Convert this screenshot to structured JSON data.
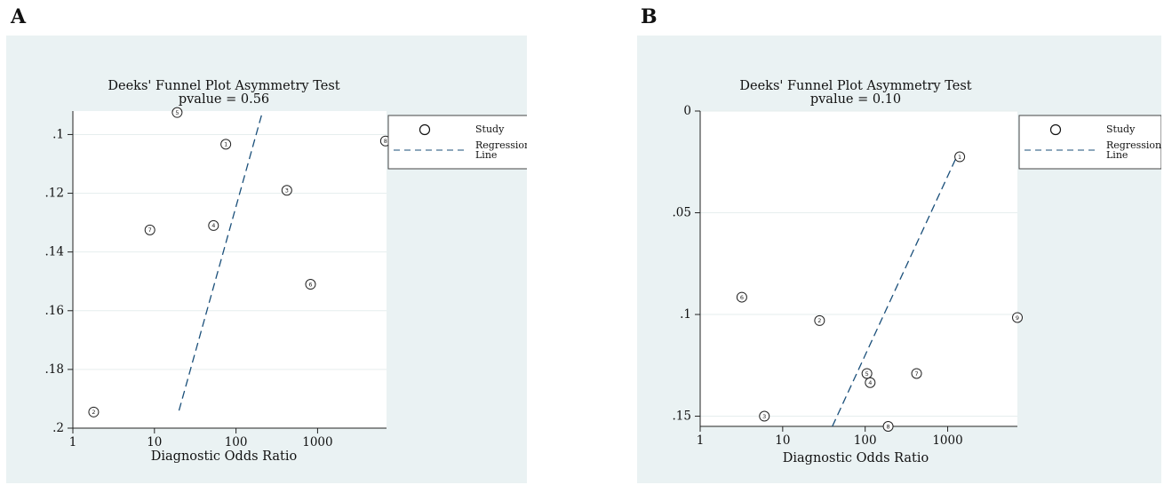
{
  "panels": [
    {
      "letter": "A"
    },
    {
      "letter": "B"
    }
  ],
  "chart_data": [
    {
      "type": "scatter",
      "title": "Deeks' Funnel Plot Asymmetry Test",
      "subtitle": "pvalue =  0.56",
      "xlabel": "Diagnostic Odds Ratio",
      "ylabel": "",
      "x_scale": "log",
      "xlim": [
        1,
        7000
      ],
      "ylim": [
        0.2,
        0.092
      ],
      "y_reversed": true,
      "grid": true,
      "legend_placement": "right",
      "xticks": [
        {
          "value": 1,
          "label": "1"
        },
        {
          "value": 10,
          "label": "10"
        },
        {
          "value": 100,
          "label": "100"
        },
        {
          "value": 1000,
          "label": "1000"
        }
      ],
      "yticks": [
        {
          "value": 0.1,
          "label": ".1"
        },
        {
          "value": 0.12,
          "label": ".12"
        },
        {
          "value": 0.14,
          "label": ".14"
        },
        {
          "value": 0.16,
          "label": ".16"
        },
        {
          "value": 0.18,
          "label": ".18"
        },
        {
          "value": 0.2,
          "label": ".2"
        }
      ],
      "legend": [
        {
          "label": "Study",
          "marker": "circle"
        },
        {
          "label": "Regression\nLine",
          "marker": "dashed-line"
        }
      ],
      "series": [
        {
          "name": "Study",
          "points": [
            {
              "label": "1",
              "x": 75,
              "y": 0.1033
            },
            {
              "label": "2",
              "x": 1.8,
              "y": 0.1945
            },
            {
              "label": "3",
              "x": 420,
              "y": 0.119
            },
            {
              "label": "4",
              "x": 53,
              "y": 0.131
            },
            {
              "label": "5",
              "x": 19,
              "y": 0.0925
            },
            {
              "label": "6",
              "x": 820,
              "y": 0.151
            },
            {
              "label": "7",
              "x": 8.8,
              "y": 0.1325
            },
            {
              "label": "8",
              "x": 6800,
              "y": 0.1022
            }
          ]
        },
        {
          "name": "Regression Line",
          "line": [
            {
              "x": 20,
              "y": 0.194
            },
            {
              "x": 210,
              "y": 0.0925
            }
          ]
        }
      ],
      "colors": {
        "background": "#eaf2f3",
        "plot": "#ffffff",
        "regression": "#1a4f7a",
        "grid": "#e6eeee"
      }
    },
    {
      "type": "scatter",
      "title": "Deeks' Funnel Plot Asymmetry Test",
      "subtitle": "pvalue =  0.10",
      "xlabel": "Diagnostic Odds Ratio",
      "ylabel": "",
      "x_scale": "log",
      "xlim": [
        1,
        7000
      ],
      "ylim": [
        0.155,
        0
      ],
      "y_reversed": true,
      "grid": true,
      "legend_placement": "right",
      "xticks": [
        {
          "value": 1,
          "label": "1"
        },
        {
          "value": 10,
          "label": "10"
        },
        {
          "value": 100,
          "label": "100"
        },
        {
          "value": 1000,
          "label": "1000"
        }
      ],
      "yticks": [
        {
          "value": 0,
          "label": "0"
        },
        {
          "value": 0.05,
          "label": ".05"
        },
        {
          "value": 0.1,
          "label": ".1"
        },
        {
          "value": 0.15,
          "label": ".15"
        }
      ],
      "legend": [
        {
          "label": "Study",
          "marker": "circle"
        },
        {
          "label": "Regression\nLine",
          "marker": "dashed-line"
        }
      ],
      "series": [
        {
          "name": "Study",
          "points": [
            {
              "label": "1",
              "x": 1400,
              "y": 0.0225
            },
            {
              "label": "2",
              "x": 28,
              "y": 0.103
            },
            {
              "label": "3",
              "x": 6,
              "y": 0.15
            },
            {
              "label": "4",
              "x": 115,
              "y": 0.1335
            },
            {
              "label": "5",
              "x": 105,
              "y": 0.129
            },
            {
              "label": "6",
              "x": 3.2,
              "y": 0.0915
            },
            {
              "label": "7",
              "x": 420,
              "y": 0.129
            },
            {
              "label": "8",
              "x": 190,
              "y": 0.155
            },
            {
              "label": "9",
              "x": 7000,
              "y": 0.1015
            }
          ]
        },
        {
          "name": "Regression Line",
          "line": [
            {
              "x": 40,
              "y": 0.155
            },
            {
              "x": 1300,
              "y": 0.022
            }
          ]
        }
      ],
      "colors": {
        "background": "#eaf2f3",
        "plot": "#ffffff",
        "regression": "#1a4f7a",
        "grid": "#e6eeee"
      }
    }
  ]
}
